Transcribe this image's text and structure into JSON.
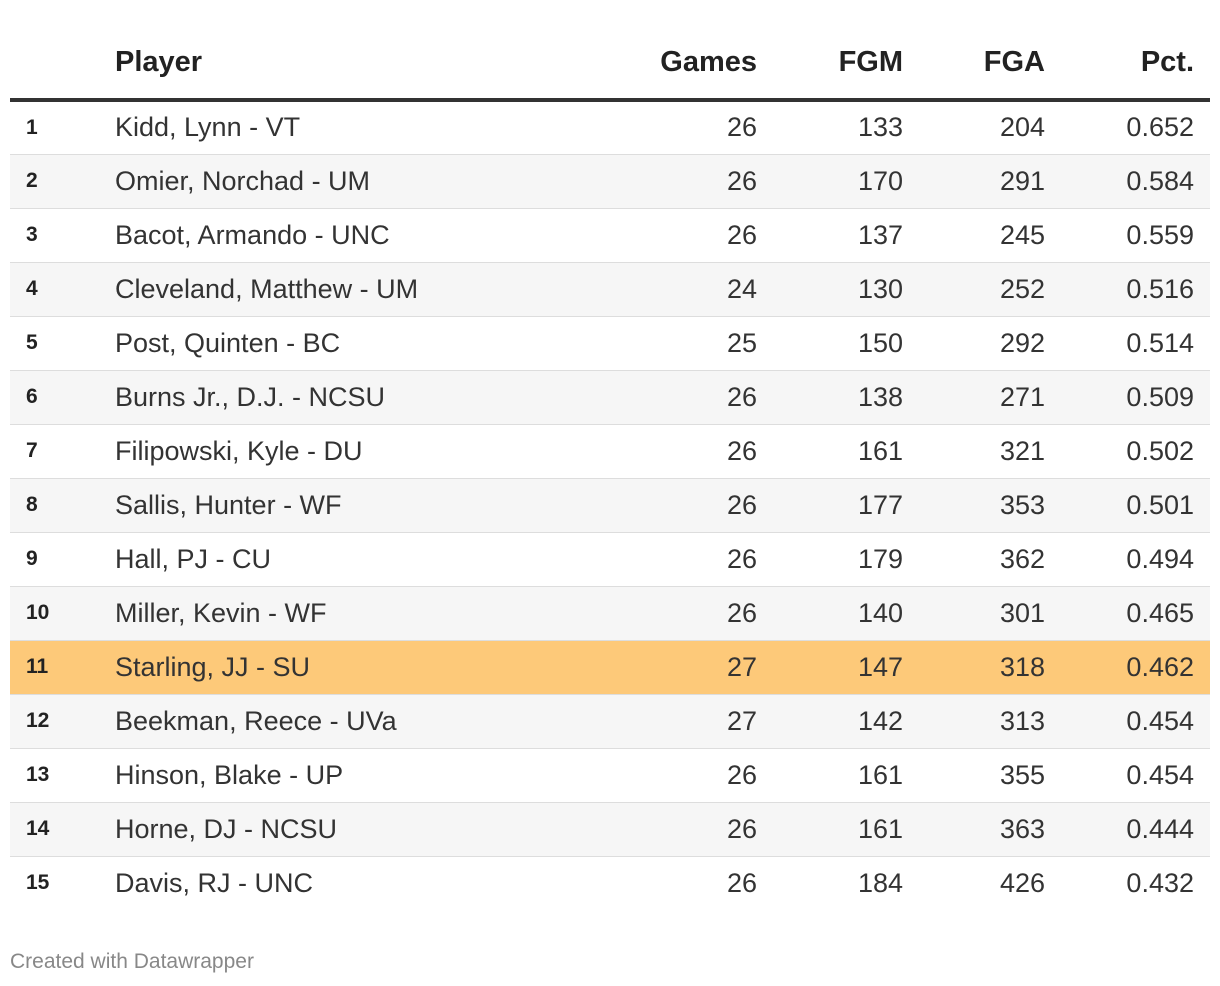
{
  "chart_data": {
    "type": "table",
    "columns": [
      "",
      "Player",
      "Games",
      "FGM",
      "FGA",
      "Pct."
    ],
    "rows": [
      {
        "rank": "1",
        "player": "Kidd, Lynn - VT",
        "games": "26",
        "fgm": "133",
        "fga": "204",
        "pct": "0.652"
      },
      {
        "rank": "2",
        "player": "Omier, Norchad - UM",
        "games": "26",
        "fgm": "170",
        "fga": "291",
        "pct": "0.584"
      },
      {
        "rank": "3",
        "player": "Bacot, Armando - UNC",
        "games": "26",
        "fgm": "137",
        "fga": "245",
        "pct": "0.559"
      },
      {
        "rank": "4",
        "player": "Cleveland, Matthew - UM",
        "games": "24",
        "fgm": "130",
        "fga": "252",
        "pct": "0.516"
      },
      {
        "rank": "5",
        "player": "Post, Quinten - BC",
        "games": "25",
        "fgm": "150",
        "fga": "292",
        "pct": "0.514"
      },
      {
        "rank": "6",
        "player": "Burns Jr., D.J. - NCSU",
        "games": "26",
        "fgm": "138",
        "fga": "271",
        "pct": "0.509"
      },
      {
        "rank": "7",
        "player": "Filipowski, Kyle - DU",
        "games": "26",
        "fgm": "161",
        "fga": "321",
        "pct": "0.502"
      },
      {
        "rank": "8",
        "player": "Sallis, Hunter - WF",
        "games": "26",
        "fgm": "177",
        "fga": "353",
        "pct": "0.501"
      },
      {
        "rank": "9",
        "player": "Hall, PJ - CU",
        "games": "26",
        "fgm": "179",
        "fga": "362",
        "pct": "0.494"
      },
      {
        "rank": "10",
        "player": "Miller, Kevin - WF",
        "games": "26",
        "fgm": "140",
        "fga": "301",
        "pct": "0.465"
      },
      {
        "rank": "11",
        "player": "Starling, JJ - SU",
        "games": "27",
        "fgm": "147",
        "fga": "318",
        "pct": "0.462",
        "highlighted": true
      },
      {
        "rank": "12",
        "player": "Beekman, Reece - UVa",
        "games": "27",
        "fgm": "142",
        "fga": "313",
        "pct": "0.454"
      },
      {
        "rank": "13",
        "player": "Hinson, Blake - UP",
        "games": "26",
        "fgm": "161",
        "fga": "355",
        "pct": "0.454"
      },
      {
        "rank": "14",
        "player": "Horne, DJ - NCSU",
        "games": "26",
        "fgm": "161",
        "fga": "363",
        "pct": "0.444"
      },
      {
        "rank": "15",
        "player": "Davis, RJ - UNC",
        "games": "26",
        "fgm": "184",
        "fga": "426",
        "pct": "0.432"
      }
    ],
    "highlight_color": "#fdc979",
    "stripe_color": "#f6f6f6"
  },
  "footer": {
    "credit": "Created with Datawrapper"
  }
}
